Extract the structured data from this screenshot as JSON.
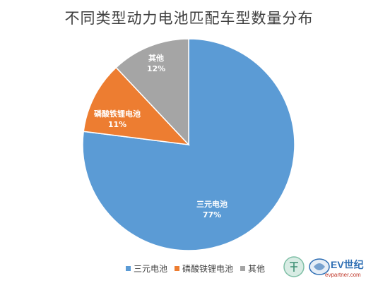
{
  "chart_data": {
    "type": "pie",
    "title": "不同类型动力电池匹配车型数量分布",
    "categories": [
      "三元电池",
      "磷酸铁锂电池",
      "其他"
    ],
    "values": [
      77,
      11,
      12
    ],
    "value_labels": [
      "77%",
      "11%",
      "12%"
    ],
    "colors": [
      "#5b9bd5",
      "#ed7d31",
      "#a5a5a5"
    ],
    "legend": "bottom"
  },
  "watermark": {
    "brand": "EV世纪",
    "url": "evpartner.com"
  }
}
